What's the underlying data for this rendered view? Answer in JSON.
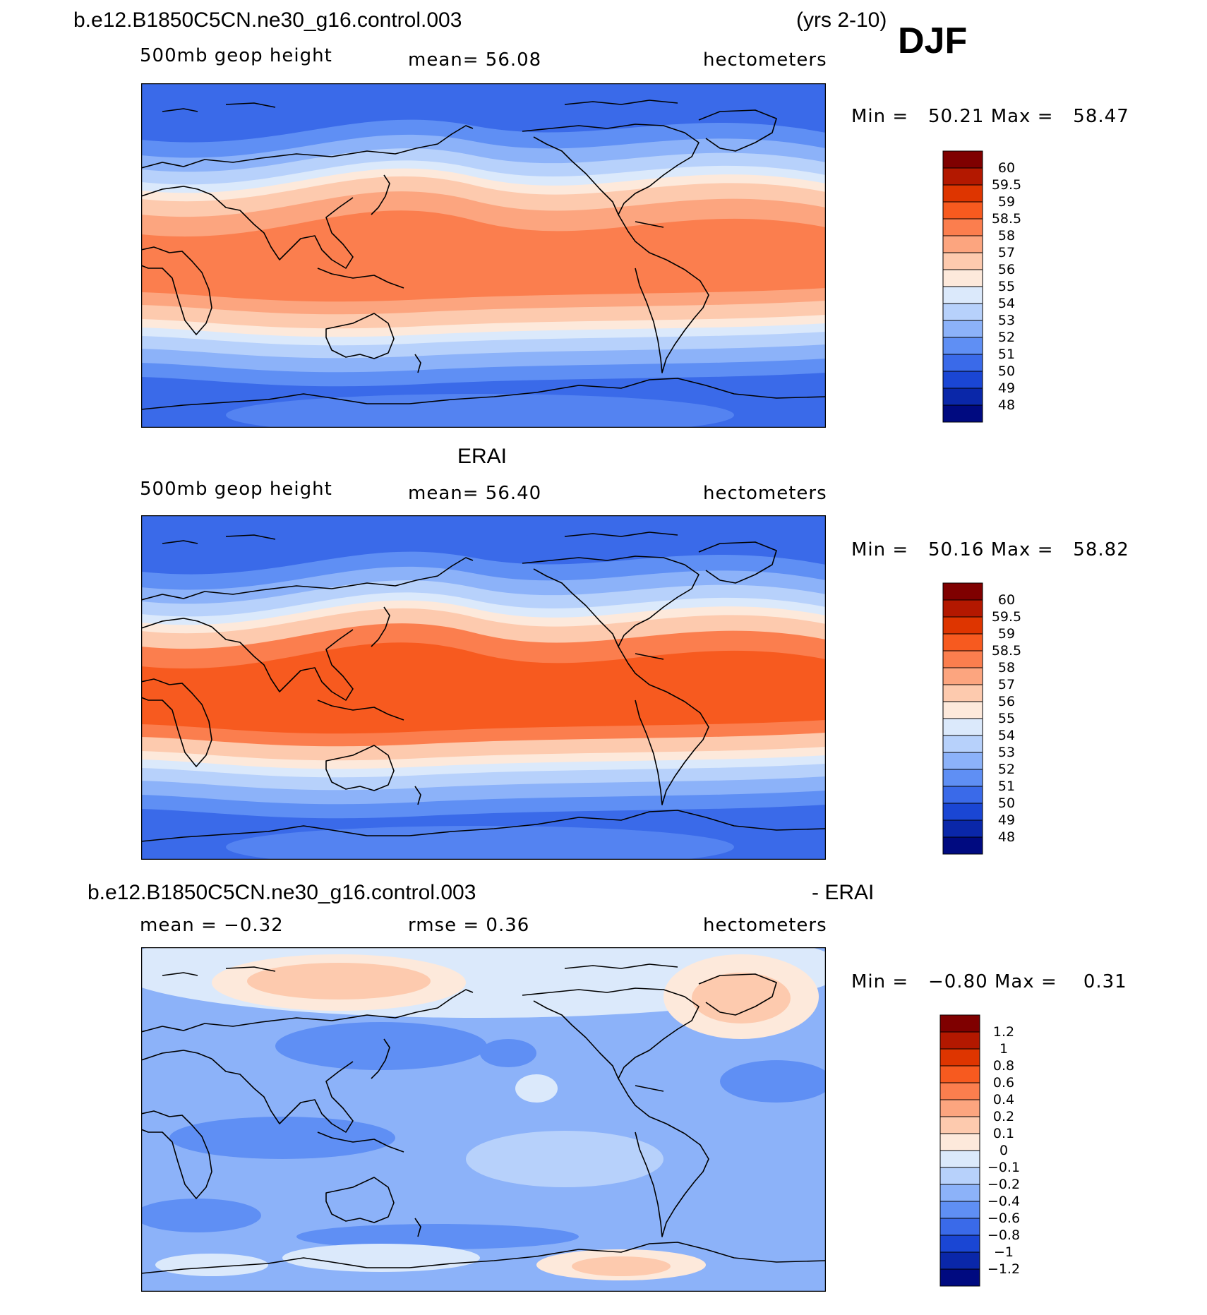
{
  "header": {
    "case_name": "b.e12.B1850C5CN.ne30_g16.control.003",
    "years": "(yrs 2-10)",
    "season": "DJF"
  },
  "panels": [
    {
      "id": "model",
      "title": "",
      "left_label": "500mb  geop  height",
      "center_label": "mean=   56.08",
      "right_label": "hectometers",
      "minmax": {
        "min_label": "Min  =",
        "min": "50.21",
        "max_label": "Max  =",
        "max": "58.47"
      },
      "colorbar": {
        "levels": [
          "60",
          "59.5",
          "59",
          "58.5",
          "58",
          "57",
          "56",
          "55",
          "54",
          "53",
          "52",
          "51",
          "50",
          "49",
          "48"
        ],
        "colors": [
          "#7f0000",
          "#b31800",
          "#de3500",
          "#f75a1f",
          "#fb7e4e",
          "#fca57f",
          "#fdcaae",
          "#fde9db",
          "#dbe9fb",
          "#b7d1fb",
          "#8cb2f9",
          "#5f8ff4",
          "#3a6ae9",
          "#1a46d4",
          "#0a27a9",
          "#000a80"
        ]
      },
      "field_colors": {
        "tropics": "#fb7e4e",
        "subtropics": "#fca57f",
        "midlat_warm": "#fdcaae",
        "midlat": "#fde9db",
        "cool1": "#dbe9fb",
        "cool2": "#b7d1fb",
        "cool3": "#8cb2f9",
        "cool4": "#5f8ff4",
        "polar": "#3a6ae9"
      }
    },
    {
      "id": "obs",
      "title": "ERAI",
      "left_label": "500mb  geop  height",
      "center_label": "mean=   56.40",
      "right_label": "hectometers",
      "minmax": {
        "min_label": "Min  =",
        "min": "50.16",
        "max_label": "Max  =",
        "max": "58.82"
      },
      "colorbar": {
        "levels": [
          "60",
          "59.5",
          "59",
          "58.5",
          "58",
          "57",
          "56",
          "55",
          "54",
          "53",
          "52",
          "51",
          "50",
          "49",
          "48"
        ],
        "colors": [
          "#7f0000",
          "#b31800",
          "#de3500",
          "#f75a1f",
          "#fb7e4e",
          "#fca57f",
          "#fdcaae",
          "#fde9db",
          "#dbe9fb",
          "#b7d1fb",
          "#8cb2f9",
          "#5f8ff4",
          "#3a6ae9",
          "#1a46d4",
          "#0a27a9",
          "#000a80"
        ]
      },
      "field_colors": {
        "tropics": "#f75a1f",
        "subtropics": "#fb7e4e",
        "midlat_warm": "#fdcaae",
        "midlat": "#fde9db",
        "cool1": "#dbe9fb",
        "cool2": "#b7d1fb",
        "cool3": "#8cb2f9",
        "cool4": "#5f8ff4",
        "polar": "#3a6ae9"
      }
    },
    {
      "id": "diff",
      "title": "b.e12.B1850C5CN.ne30_g16.control.003",
      "title_right": "- ERAI",
      "left_label": "mean  =   −0.32",
      "center_label": "rmse  =     0.36",
      "right_label": "hectometers",
      "minmax": {
        "min_label": "Min  =",
        "min": "−0.80",
        "max_label": "Max  =",
        "max": "0.31"
      },
      "colorbar": {
        "levels": [
          "1.2",
          "1",
          "0.8",
          "0.6",
          "0.4",
          "0.2",
          "0.1",
          "0",
          "−0.1",
          "−0.2",
          "−0.4",
          "−0.6",
          "−0.8",
          "−1",
          "−1.2"
        ],
        "colors": [
          "#7f0000",
          "#b31800",
          "#de3500",
          "#f75a1f",
          "#fb7e4e",
          "#fca57f",
          "#fdcaae",
          "#fde9db",
          "#dbe9fb",
          "#b7d1fb",
          "#8cb2f9",
          "#5f8ff4",
          "#3a6ae9",
          "#1a46d4",
          "#0a27a9",
          "#000a80"
        ]
      },
      "field_colors": {
        "base": "#8cb2f9",
        "light": "#b7d1fb",
        "lighter": "#dbe9fb",
        "warm": "#fde9db",
        "warm2": "#fdcaae",
        "warm3": "#fca57f",
        "cool": "#5f8ff4"
      }
    }
  ]
}
